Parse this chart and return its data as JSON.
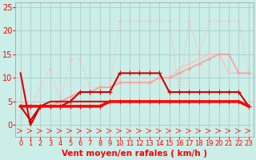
{
  "background_color": "#cceee8",
  "grid_color": "#aacccc",
  "xlabel": "Vent moyen/en rafales ( km/h )",
  "xlim": [
    0,
    23
  ],
  "ylim": [
    0,
    26
  ],
  "yticks": [
    0,
    5,
    10,
    15,
    20,
    25
  ],
  "xticks": [
    0,
    1,
    2,
    3,
    4,
    5,
    6,
    7,
    8,
    9,
    10,
    11,
    12,
    13,
    14,
    15,
    16,
    17,
    18,
    19,
    20,
    21,
    22,
    23
  ],
  "series": [
    {
      "x": [
        0,
        1,
        2,
        3,
        4,
        5,
        6,
        7,
        8,
        9,
        10,
        11,
        12,
        13,
        14,
        15,
        16,
        17,
        18,
        19,
        20,
        21,
        22,
        23
      ],
      "y": [
        4,
        4,
        4,
        4,
        4,
        4,
        4,
        4,
        4,
        5,
        5,
        5,
        5,
        5,
        5,
        5,
        5,
        5,
        5,
        5,
        5,
        5,
        5,
        4
      ],
      "color": "#ff0000",
      "lw": 2.5,
      "marker": "+",
      "markersize": 4,
      "alpha": 1.0,
      "zorder": 6,
      "linestyle": "solid"
    },
    {
      "x": [
        0,
        1,
        2,
        3,
        4,
        5,
        6,
        7,
        8,
        9,
        10,
        11,
        12,
        13,
        14,
        15,
        16,
        17,
        18,
        19,
        20,
        21,
        22,
        23
      ],
      "y": [
        4,
        1,
        4,
        4,
        4,
        5,
        7,
        7,
        7,
        7,
        11,
        11,
        11,
        11,
        11,
        7,
        7,
        7,
        7,
        7,
        7,
        7,
        7,
        4
      ],
      "color": "#cc0000",
      "lw": 1.5,
      "marker": "+",
      "markersize": 4,
      "alpha": 1.0,
      "zorder": 5,
      "linestyle": "solid"
    },
    {
      "x": [
        0,
        1,
        2,
        3,
        4,
        5,
        6,
        7,
        8,
        9,
        10,
        11,
        12,
        13,
        14,
        15,
        16,
        17,
        18,
        19,
        20,
        21,
        22,
        23
      ],
      "y": [
        11,
        0,
        4,
        5,
        5,
        5,
        5,
        5,
        5,
        5,
        5,
        5,
        5,
        5,
        5,
        5,
        5,
        5,
        5,
        5,
        5,
        5,
        5,
        4
      ],
      "color": "#dd0000",
      "lw": 1.5,
      "marker": null,
      "markersize": 0,
      "alpha": 1.0,
      "zorder": 4,
      "linestyle": "solid"
    },
    {
      "x": [
        0,
        1,
        2,
        3,
        4,
        5,
        6,
        7,
        8,
        9,
        10,
        11,
        12,
        13,
        14,
        15,
        16,
        17,
        18,
        19,
        20,
        21,
        22,
        23
      ],
      "y": [
        4,
        4,
        4,
        4,
        5,
        6,
        7,
        7,
        8,
        8,
        9,
        9,
        9,
        9,
        10,
        10,
        11,
        12,
        13,
        14,
        15,
        15,
        11,
        11
      ],
      "color": "#ff9999",
      "lw": 1.2,
      "marker": "+",
      "markersize": 4,
      "alpha": 0.9,
      "zorder": 3,
      "linestyle": "solid"
    },
    {
      "x": [
        0,
        1,
        2,
        3,
        4,
        5,
        6,
        7,
        8,
        9,
        10,
        11,
        12,
        13,
        14,
        15,
        16,
        17,
        18,
        19,
        20,
        21,
        22,
        23
      ],
      "y": [
        5,
        4,
        4,
        4,
        5,
        6,
        7,
        7,
        8,
        8,
        9,
        9,
        9,
        9,
        10,
        10,
        12,
        13,
        14,
        15,
        15,
        11,
        11,
        11
      ],
      "color": "#ffbbbb",
      "lw": 1.0,
      "marker": "+",
      "markersize": 3,
      "alpha": 0.85,
      "zorder": 2,
      "linestyle": "solid"
    },
    {
      "x": [
        0,
        1,
        2,
        3,
        4,
        5,
        6,
        7,
        8,
        9,
        10,
        11,
        12,
        13,
        14,
        15,
        16,
        17,
        18,
        19,
        20,
        21,
        22,
        23
      ],
      "y": [
        4,
        4,
        8,
        12,
        5,
        14,
        14,
        8,
        8,
        8,
        22,
        22,
        22,
        22,
        22,
        22,
        7,
        22,
        15,
        22,
        22,
        22,
        22,
        11
      ],
      "color": "#ffaaaa",
      "lw": 1.0,
      "marker": "+",
      "markersize": 3,
      "alpha": 0.75,
      "zorder": 1,
      "linestyle": "dotted"
    },
    {
      "x": [
        0,
        1,
        2,
        3,
        4,
        5,
        6,
        7,
        8,
        9,
        10,
        11,
        12,
        13,
        14,
        15,
        16,
        17,
        18,
        19,
        20,
        21,
        22,
        23
      ],
      "y": [
        11,
        4,
        8,
        8,
        8,
        8,
        8,
        8,
        8,
        9,
        9,
        9,
        9,
        9,
        9,
        11,
        11,
        11,
        11,
        11,
        11,
        14,
        11,
        11
      ],
      "color": "#ffcccc",
      "lw": 1.0,
      "marker": "+",
      "markersize": 3,
      "alpha": 0.7,
      "zorder": 1,
      "linestyle": "dotted"
    }
  ],
  "xlabel_color": "#ff0000",
  "xlabel_fontsize": 7.5,
  "xlabel_fontweight": "bold",
  "tick_color": "#ff0000",
  "tick_fontsize": 6,
  "ytick_fontsize": 7
}
